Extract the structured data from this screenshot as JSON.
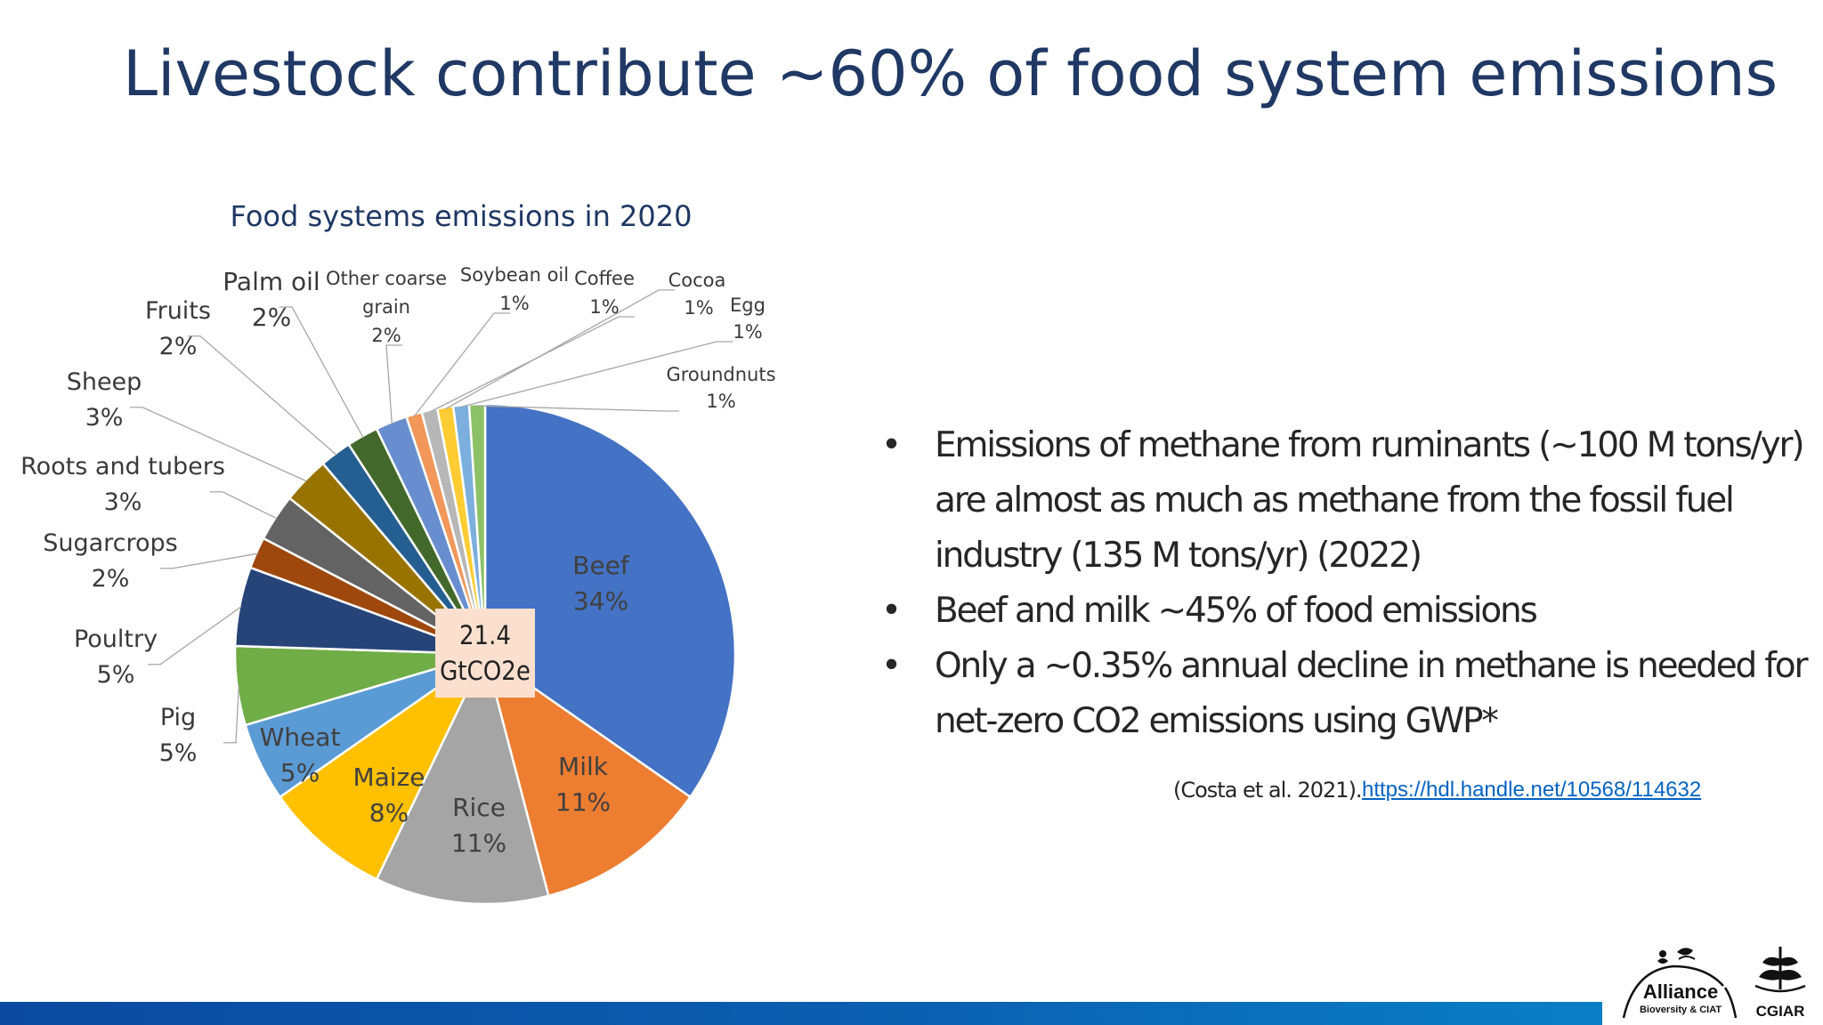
{
  "slide": {
    "title": "Livestock contribute ~60% of food system emissions",
    "bullets": [
      "Emissions of methane from ruminants (~100 M tons/yr) are almost as much as methane from the fossil fuel industry (135 M tons/yr) (2022)",
      "Beef and milk ~45% of food emissions",
      "Only a ~0.35% annual decline in methane is needed for net-zero CO2 emissions using GWP*"
    ],
    "citation": "(Costa et al. 2021).",
    "link": "https://hdl.handle.net/10568/114632"
  },
  "center_label": {
    "value": "21.4",
    "unit": "GtCO2e"
  },
  "logos": {
    "alliance": {
      "name": "Alliance",
      "sub": "Bioversity & CIAT"
    },
    "cgiar": {
      "name": "CGIAR"
    }
  },
  "colors": {
    "title": "#1f3864",
    "footer_bar": "#0b5fb0",
    "link": "#0563c1",
    "center_box": "#fbe0cf"
  },
  "chart_data": {
    "type": "pie",
    "title": "Food systems emissions in 2020",
    "start_angle_deg": 0,
    "direction": "clockwise",
    "slices": [
      {
        "label": "Beef",
        "value": 34,
        "display": "34%",
        "color": "#4472c4"
      },
      {
        "label": "Milk",
        "value": 11,
        "display": "11%",
        "color": "#ed7d31"
      },
      {
        "label": "Rice",
        "value": 11,
        "display": "11%",
        "color": "#a5a5a5"
      },
      {
        "label": "Maize",
        "value": 8,
        "display": "8%",
        "color": "#ffc000"
      },
      {
        "label": "Wheat",
        "value": 5,
        "display": "5%",
        "color": "#5b9bd5"
      },
      {
        "label": "Pig",
        "value": 5,
        "display": "5%",
        "color": "#70ad47"
      },
      {
        "label": "Poultry",
        "value": 5,
        "display": "5%",
        "color": "#264478"
      },
      {
        "label": "Sugarcrops",
        "value": 2,
        "display": "2%",
        "color": "#9e480e"
      },
      {
        "label": "Roots and tubers",
        "value": 3,
        "display": "3%",
        "color": "#636363"
      },
      {
        "label": "Sheep",
        "value": 3,
        "display": "3%",
        "color": "#997300"
      },
      {
        "label": "Fruits",
        "value": 2,
        "display": "2%",
        "color": "#255e91"
      },
      {
        "label": "Palm oil",
        "value": 2,
        "display": "2%",
        "color": "#43682b"
      },
      {
        "label": "Other coarse grain",
        "value": 2,
        "display": "2%",
        "color": "#698ed0"
      },
      {
        "label": "Soybean oil",
        "value": 1,
        "display": "1%",
        "color": "#f1975a"
      },
      {
        "label": "Coffee",
        "value": 1,
        "display": "1%",
        "color": "#b7b7b7"
      },
      {
        "label": "Cocoa",
        "value": 1,
        "display": "1%",
        "color": "#ffcd33"
      },
      {
        "label": "Egg",
        "value": 1,
        "display": "1%",
        "color": "#7cafdd"
      },
      {
        "label": "Groundnuts",
        "value": 1,
        "display": "1%",
        "color": "#8cc168"
      }
    ]
  }
}
